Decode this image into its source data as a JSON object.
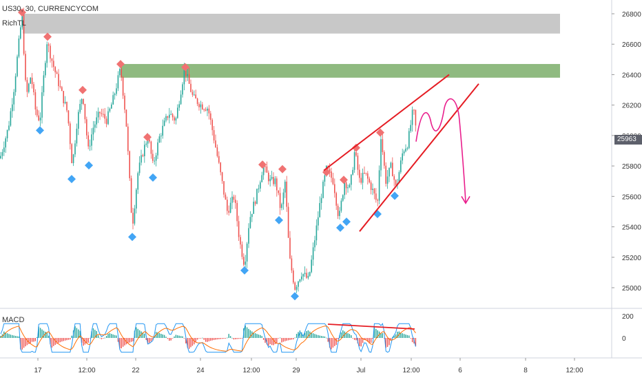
{
  "header": {
    "symbol_line": "US30, 30, CURRENCYCOM",
    "indicator_label": "RichTL",
    "macd_label": "MACD"
  },
  "colors": {
    "up": "#26a69a",
    "down": "#ef5350",
    "zone_gray": "#c8c8c8",
    "zone_green": "#8fba80",
    "swing_high": "#f07272",
    "swing_low": "#42a5f5",
    "wedge": "#e51c23",
    "projection": "#e91e8c",
    "macd_line": "#2196f3",
    "signal_line": "#ff6d00",
    "price_tag_bg": "#5d606b"
  },
  "chart_data": [
    {
      "type": "candlestick",
      "title": "US30, 30, CURRENCYCOM",
      "xlabel": "",
      "ylabel": "",
      "x_ticks": [
        "17",
        "12:00",
        "22",
        "24",
        "12:00",
        "29",
        "Jul",
        "12:00",
        "6",
        "8",
        "12:00"
      ],
      "y_ticks": [
        25000,
        25200,
        25400,
        25600,
        25800,
        26000,
        26200,
        26400,
        26600,
        26800
      ],
      "ylim": [
        24900,
        26930
      ],
      "last_price": "25963",
      "grid": false,
      "annotations": [
        {
          "kind": "zone",
          "label": "resistance zone (gray)",
          "y_range": [
            26670,
            26800
          ]
        },
        {
          "kind": "zone",
          "label": "resistance zone (green)",
          "y_range": [
            26380,
            26470
          ]
        },
        {
          "kind": "rising wedge",
          "upper_line": [
            [
              25770,
              26400
            ]
          ],
          "lower_line": [
            [
              25370,
              26340
            ]
          ]
        },
        {
          "kind": "projection arrow",
          "direction": "down",
          "target_approx": 25560
        }
      ],
      "swing_highs": [
        26800,
        26640,
        26290,
        26460,
        25980,
        26440,
        25800,
        25770,
        25750,
        25700,
        25910,
        26010
      ],
      "swing_lows": [
        26070,
        25750,
        25840,
        25370,
        25760,
        25150,
        25480,
        24980,
        25430,
        25470,
        25520,
        25640
      ]
    },
    {
      "type": "line",
      "title": "MACD",
      "y_ticks": [
        200,
        0
      ],
      "series": [],
      "histogram": true
    }
  ]
}
